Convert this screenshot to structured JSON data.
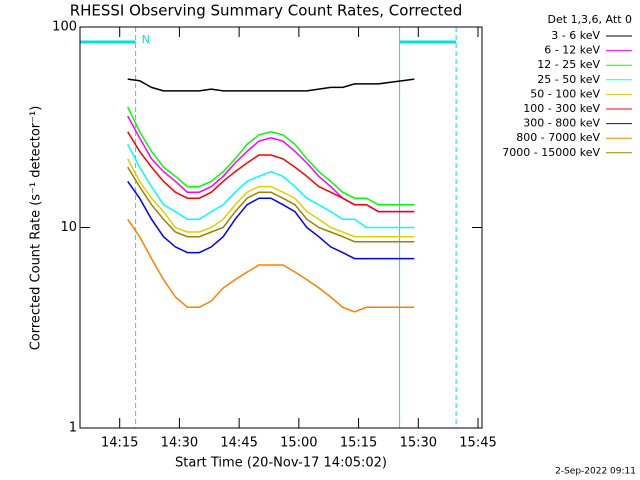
{
  "chart_data": {
    "type": "line",
    "title": "RHESSI Observing Summary Count Rates, Corrected",
    "x_label": "Start Time (20-Nov-17 14:05:02)",
    "y_label": "Corrected Count Rate (s⁻¹ detector⁻¹)",
    "legend_title": "Det 1,3,6, Att 0",
    "timestamp": "2-Sep-2022 09:11",
    "log_y": true,
    "xlim": [
      5.03,
      106
    ],
    "xticks": [
      {
        "value": 15,
        "label": "14:15"
      },
      {
        "value": 30,
        "label": "14:30"
      },
      {
        "value": 45,
        "label": "14:45"
      },
      {
        "value": 60,
        "label": "15:00"
      },
      {
        "value": 75,
        "label": "15:15"
      },
      {
        "value": 90,
        "label": "15:30"
      },
      {
        "value": 105,
        "label": "15:45"
      }
    ],
    "ylim": [
      1,
      100
    ],
    "yticks": [
      1,
      10,
      100
    ],
    "intervals": [
      {
        "start": 5.03,
        "end": 19,
        "label": "N"
      },
      {
        "start": 85.3,
        "end": 99.5
      }
    ],
    "interval_color": "#00e0e0",
    "x": [
      17,
      20,
      23,
      26,
      29,
      32,
      35,
      38,
      41,
      44,
      47,
      50,
      53,
      56,
      59,
      62,
      65,
      68,
      71,
      74,
      77,
      80,
      83,
      86,
      89
    ],
    "series": [
      {
        "name": "3 - 6 keV",
        "color": "#000000",
        "values": [
          55,
          54,
          50,
          48,
          48,
          48,
          48,
          49,
          48,
          48,
          48,
          48,
          48,
          48,
          48,
          48,
          49,
          50,
          50,
          52,
          52,
          52,
          53,
          54,
          55
        ]
      },
      {
        "name": "6 - 12 keV",
        "color": "#ff00ff",
        "values": [
          36,
          28,
          22,
          19,
          17,
          15,
          15,
          16,
          18,
          21,
          24,
          27,
          28,
          27,
          24,
          21,
          18,
          16,
          14,
          13,
          13,
          12,
          12,
          12,
          12
        ]
      },
      {
        "name": "12 - 25 keV",
        "color": "#00ff00",
        "values": [
          40,
          30,
          24,
          20,
          18,
          16,
          16,
          17,
          19,
          22,
          26,
          29,
          30,
          29,
          26,
          22,
          19,
          17,
          15,
          14,
          14,
          13,
          13,
          13,
          13
        ]
      },
      {
        "name": "25 - 50 keV",
        "color": "#00ffff",
        "values": [
          26,
          20,
          16,
          13,
          12,
          11,
          11,
          12,
          13,
          15,
          17,
          18,
          19,
          18,
          16,
          14,
          13,
          12,
          11,
          11,
          10,
          10,
          10,
          10,
          10
        ]
      },
      {
        "name": "50 - 100 keV",
        "color": "#e0d000",
        "values": [
          22,
          17,
          14,
          12,
          10,
          9.5,
          9.5,
          10,
          11,
          13,
          15,
          16,
          16,
          15,
          14,
          12,
          11,
          10,
          9.5,
          9,
          9,
          9,
          9,
          9,
          9
        ]
      },
      {
        "name": "100 - 300 keV",
        "color": "#ff0000",
        "values": [
          30,
          24,
          20,
          17,
          15,
          14,
          14,
          15,
          17,
          19,
          21,
          23,
          23,
          22,
          20,
          18,
          16,
          15,
          14,
          13,
          13,
          12,
          12,
          12,
          12
        ]
      },
      {
        "name": "300 - 800 keV",
        "color": "#0000ff",
        "values": [
          17,
          14,
          11,
          9,
          8,
          7.5,
          7.5,
          8,
          9,
          11,
          13,
          14,
          14,
          13,
          12,
          10,
          9,
          8,
          7.5,
          7,
          7,
          7,
          7,
          7,
          7
        ]
      },
      {
        "name": "800 - 7000 keV",
        "color": "#ff8000",
        "values": [
          11,
          9,
          7,
          5.5,
          4.5,
          4,
          4,
          4.3,
          5,
          5.5,
          6,
          6.5,
          6.5,
          6.5,
          6,
          5.5,
          5,
          4.5,
          4,
          3.8,
          4,
          4,
          4,
          4,
          4
        ]
      },
      {
        "name": "7000 - 15000 keV",
        "color": "#a08000",
        "values": [
          20,
          16,
          13,
          11,
          9.5,
          9,
          9,
          9.5,
          10,
          12,
          14,
          15,
          15,
          14,
          13,
          11,
          10,
          9.5,
          9,
          8.5,
          8.5,
          8.5,
          8.5,
          8.5,
          8.5
        ]
      }
    ]
  }
}
